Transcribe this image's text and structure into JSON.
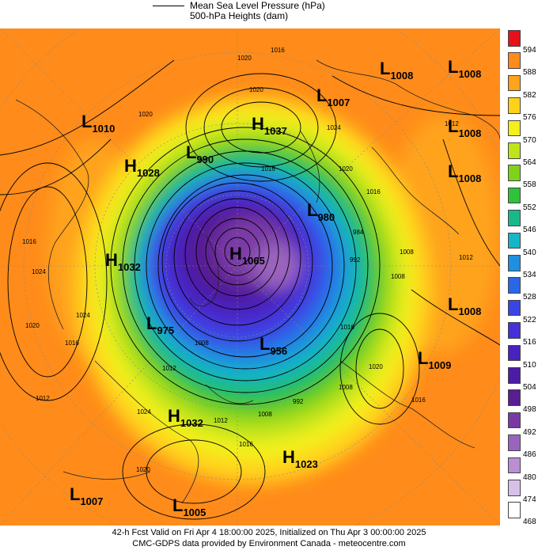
{
  "legend": {
    "line1": "Mean Sea Level Pressure (hPa)",
    "line2": "500-hPa Heights (dam)"
  },
  "colorbar": {
    "labels": [
      "594",
      "588",
      "582",
      "576",
      "570",
      "564",
      "558",
      "552",
      "546",
      "540",
      "534",
      "528",
      "522",
      "516",
      "510",
      "504",
      "498",
      "492",
      "486",
      "480",
      "474",
      "468"
    ],
    "colors": [
      "#e8101a",
      "#ff8c1a",
      "#ffa31a",
      "#ffd21a",
      "#f3f01a",
      "#c0e41a",
      "#7fd21a",
      "#2fc23a",
      "#17b98b",
      "#16b6c8",
      "#1f8fe0",
      "#2a66e8",
      "#3a45e6",
      "#4630d8",
      "#4a22c0",
      "#4d1ca6",
      "#5a1d92",
      "#7a3aa6",
      "#9a64be",
      "#b98ed4",
      "#d8c0e8",
      "#ffffff"
    ]
  },
  "systems": [
    {
      "type": "L",
      "pressure": "1008"
    },
    {
      "type": "L",
      "pressure": "1008"
    },
    {
      "type": "L",
      "pressure": "1007"
    },
    {
      "type": "L",
      "pressure": "1010"
    },
    {
      "type": "H",
      "pressure": "1037"
    },
    {
      "type": "L",
      "pressure": "1008"
    },
    {
      "type": "H",
      "pressure": "1028"
    },
    {
      "type": "L",
      "pressure": "990"
    },
    {
      "type": "L",
      "pressure": "1008"
    },
    {
      "type": "L",
      "pressure": "980"
    },
    {
      "type": "H",
      "pressure": "1065"
    },
    {
      "type": "H",
      "pressure": "1032"
    },
    {
      "type": "L",
      "pressure": "1008"
    },
    {
      "type": "L",
      "pressure": "975"
    },
    {
      "type": "L",
      "pressure": "956"
    },
    {
      "type": "L",
      "pressure": "1009"
    },
    {
      "type": "H",
      "pressure": "1032"
    },
    {
      "type": "H",
      "pressure": "1023"
    },
    {
      "type": "L",
      "pressure": "1007"
    },
    {
      "type": "L",
      "pressure": "1005"
    }
  ],
  "isobar_labels": [
    "1020",
    "1016",
    "1020",
    "1020",
    "1024",
    "1012",
    "1016",
    "1020",
    "1016",
    "1016",
    "1024",
    "1008",
    "1012",
    "992",
    "984",
    "1008",
    "1016",
    "1020",
    "1024",
    "1008",
    "1012",
    "1016",
    "1020",
    "1008",
    "1012",
    "1016",
    "1008",
    "992",
    "1024",
    "1016",
    "1020",
    "1012"
  ],
  "footer": {
    "line1": "42-h Fcst Valid on Fri Apr  4 18:00:00 2025, Initialized on Thu Apr  3 00:00:00 2025",
    "line2": "CMC-GDPS data provided by Environment Canada - meteocentre.com"
  }
}
